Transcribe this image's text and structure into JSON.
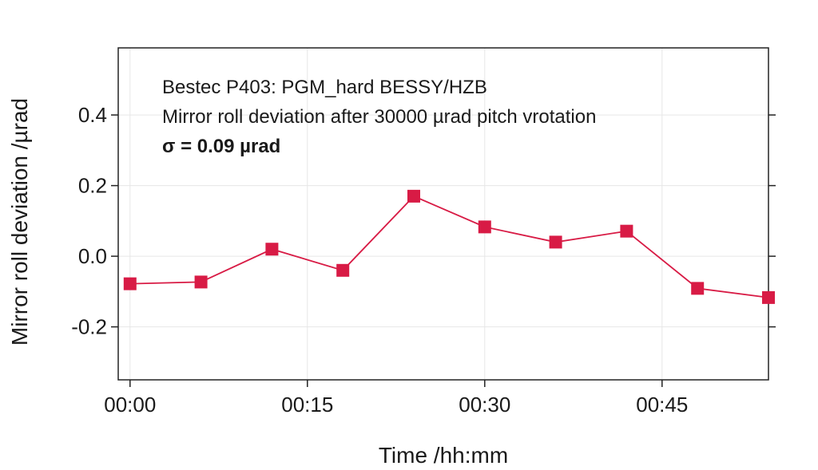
{
  "chart_data": {
    "type": "line",
    "annotations": [
      "Bestec P403: PGM_hard BESSY/HZB",
      "Mirror roll deviation after 30000 µrad pitch vrotation",
      "σ = 0.09 µrad"
    ],
    "xlabel": "Time /hh:mm",
    "ylabel": "Mirror roll deviation /µrad",
    "x_ticks": [
      {
        "minutes": 0,
        "label": "00:00"
      },
      {
        "minutes": 15,
        "label": "00:15"
      },
      {
        "minutes": 30,
        "label": "00:30"
      },
      {
        "minutes": 45,
        "label": "00:45"
      }
    ],
    "y_ticks": [
      {
        "value": -0.2,
        "label": "-0.2"
      },
      {
        "value": 0.0,
        "label": "0.0"
      },
      {
        "value": 0.2,
        "label": "0.2"
      },
      {
        "value": 0.4,
        "label": "0.4"
      }
    ],
    "xlim": [
      "-00:01",
      "00:54"
    ],
    "ylim": [
      -0.35,
      0.59
    ],
    "grid": true,
    "series": [
      {
        "color": "#d81b45",
        "marker": "square",
        "x": [
          "00:00",
          "00:06",
          "00:12",
          "00:18",
          "00:24",
          "00:30",
          "00:36",
          "00:42",
          "00:48",
          "00:54"
        ],
        "y": [
          -0.078,
          -0.073,
          0.02,
          -0.04,
          0.17,
          0.083,
          0.04,
          0.071,
          -0.091,
          -0.117
        ]
      }
    ]
  }
}
